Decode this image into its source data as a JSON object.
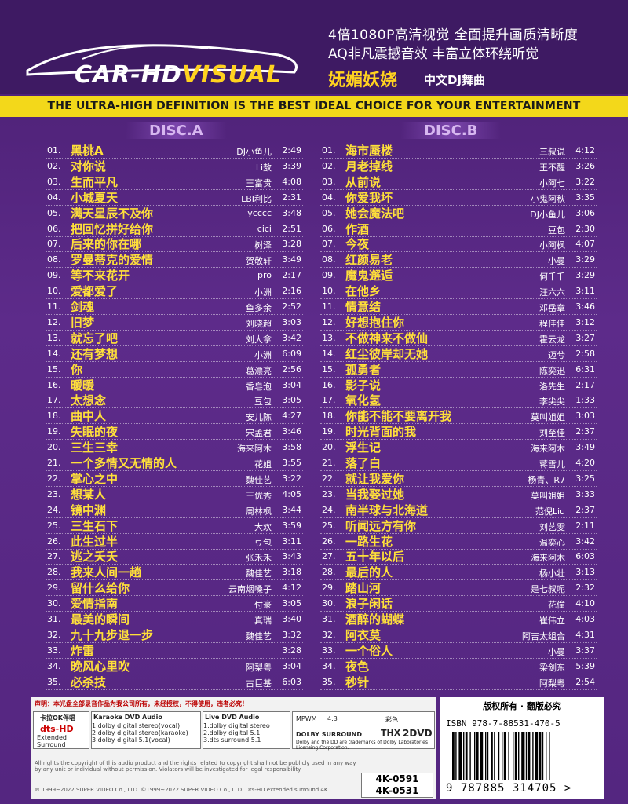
{
  "header": {
    "logo_left": "CAR-HD",
    "logo_right": "VISUAL",
    "features": [
      "4倍1080P高清视觉 全面提升画质清晰度",
      "AQ非凡震撼音效 丰富立体环绕听觉"
    ],
    "title": "妩媚妖娆",
    "subtitle": "中文DJ舞曲"
  },
  "banner": "THE ULTRA-HIGH DEFINITION IS THE BEST IDEAL CHOICE FOR YOUR ENTERTAINMENT",
  "discs": [
    {
      "label": "DISC.A",
      "tracks": [
        {
          "no": "01.",
          "title": "黑桃A",
          "artist": "DJ小鱼儿",
          "time": "2:49"
        },
        {
          "no": "02.",
          "title": "对你说",
          "artist": "Li敖",
          "time": "3:39"
        },
        {
          "no": "03.",
          "title": "生而平凡",
          "artist": "王富贵",
          "time": "4:08"
        },
        {
          "no": "04.",
          "title": "小城夏天",
          "artist": "LBI利比",
          "time": "2:31"
        },
        {
          "no": "05.",
          "title": "满天星辰不及你",
          "artist": "ycccc",
          "time": "3:48"
        },
        {
          "no": "06.",
          "title": "把回忆拼好给你",
          "artist": "cici",
          "time": "2:51"
        },
        {
          "no": "07.",
          "title": "后来的你在哪",
          "artist": "树泽",
          "time": "3:28"
        },
        {
          "no": "08.",
          "title": "罗曼蒂克的爱情",
          "artist": "贺敬轩",
          "time": "3:49"
        },
        {
          "no": "09.",
          "title": "等不来花开",
          "artist": "pro",
          "time": "2:17"
        },
        {
          "no": "10.",
          "title": "爱都爱了",
          "artist": "小洲",
          "time": "2:16"
        },
        {
          "no": "11.",
          "title": "剑魂",
          "artist": "鱼多余",
          "time": "2:52"
        },
        {
          "no": "12.",
          "title": "旧梦",
          "artist": "刘晓超",
          "time": "3:03"
        },
        {
          "no": "13.",
          "title": "就忘了吧",
          "artist": "刘大拿",
          "time": "3:42"
        },
        {
          "no": "14.",
          "title": "还有梦想",
          "artist": "小洲",
          "time": "6:09"
        },
        {
          "no": "15.",
          "title": "你",
          "artist": "葛漂亮",
          "time": "2:56"
        },
        {
          "no": "16.",
          "title": "暖暖",
          "artist": "香皂泡",
          "time": "3:04"
        },
        {
          "no": "17.",
          "title": "太想念",
          "artist": "豆包",
          "time": "3:05"
        },
        {
          "no": "18.",
          "title": "曲中人",
          "artist": "安儿陈",
          "time": "4:27"
        },
        {
          "no": "19.",
          "title": "失眠的夜",
          "artist": "宋孟君",
          "time": "3:46"
        },
        {
          "no": "20.",
          "title": "三生三幸",
          "artist": "海来阿木",
          "time": "3:58"
        },
        {
          "no": "21.",
          "title": "一个多情又无情的人",
          "artist": "花姐",
          "time": "3:55"
        },
        {
          "no": "22.",
          "title": "掌心之中",
          "artist": "魏佳艺",
          "time": "3:22"
        },
        {
          "no": "23.",
          "title": "想某人",
          "artist": "王优秀",
          "time": "4:05"
        },
        {
          "no": "24.",
          "title": "镜中渊",
          "artist": "周林枫",
          "time": "3:44"
        },
        {
          "no": "25.",
          "title": "三生石下",
          "artist": "大欢",
          "time": "3:59"
        },
        {
          "no": "26.",
          "title": "此生过半",
          "artist": "豆包",
          "time": "3:11"
        },
        {
          "no": "27.",
          "title": "逃之夭夭",
          "artist": "张禾禾",
          "time": "3:43"
        },
        {
          "no": "28.",
          "title": "我来人间一趟",
          "artist": "魏佳艺",
          "time": "3:18"
        },
        {
          "no": "29.",
          "title": "留什么给你",
          "artist": "云南烟嗓子",
          "time": "4:12"
        },
        {
          "no": "30.",
          "title": "爱情指南",
          "artist": "付豪",
          "time": "3:05"
        },
        {
          "no": "31.",
          "title": "最美的瞬间",
          "artist": "真瑞",
          "time": "3:40"
        },
        {
          "no": "32.",
          "title": "九十九步退一步",
          "artist": "魏佳艺",
          "time": "3:32"
        },
        {
          "no": "33.",
          "title": "炸雷",
          "time": "3:28"
        },
        {
          "no": "34.",
          "title": "晚风心里吹",
          "artist": "阿梨粤",
          "time": "3:04"
        },
        {
          "no": "35.",
          "title": "必杀技",
          "artist": "古巨基",
          "time": "6:03"
        }
      ]
    },
    {
      "label": "DISC.B",
      "tracks": [
        {
          "no": "01.",
          "title": "海市蜃楼",
          "artist": "三叔说",
          "time": "4:12"
        },
        {
          "no": "02.",
          "title": "月老掉线",
          "artist": "王不醒",
          "time": "3:26"
        },
        {
          "no": "03.",
          "title": "从前说",
          "artist": "小阿七",
          "time": "3:22"
        },
        {
          "no": "04.",
          "title": "你爱我坏",
          "artist": "小鬼阿秋",
          "time": "3:35"
        },
        {
          "no": "05.",
          "title": "她会魔法吧",
          "artist": "DJ小鱼儿",
          "time": "3:06"
        },
        {
          "no": "06.",
          "title": "作酒",
          "artist": "豆包",
          "time": "2:30"
        },
        {
          "no": "07.",
          "title": "今夜",
          "artist": "小阿枫",
          "time": "4:07"
        },
        {
          "no": "08.",
          "title": "红颜易老",
          "artist": "小曼",
          "time": "3:29"
        },
        {
          "no": "09.",
          "title": "魔鬼邂逅",
          "artist": "何千千",
          "time": "3:29"
        },
        {
          "no": "10.",
          "title": "在他乡",
          "artist": "汪六六",
          "time": "3:11"
        },
        {
          "no": "11.",
          "title": "情意结",
          "artist": "邓岳章",
          "time": "3:46"
        },
        {
          "no": "12.",
          "title": "好想抱住你",
          "artist": "程佳佳",
          "time": "3:12"
        },
        {
          "no": "13.",
          "title": "不做神来不做仙",
          "artist": "霍云龙",
          "time": "3:27"
        },
        {
          "no": "14.",
          "title": "红尘彼岸却无她",
          "artist": "迈兮",
          "time": "2:58"
        },
        {
          "no": "15.",
          "title": "孤勇者",
          "artist": "陈奕迅",
          "time": "6:31"
        },
        {
          "no": "16.",
          "title": "影子说",
          "artist": "洛先生",
          "time": "2:17"
        },
        {
          "no": "17.",
          "title": "氧化氢",
          "artist": "李尖尖",
          "time": "1:33"
        },
        {
          "no": "18.",
          "title": "你能不能不要离开我",
          "artist": "莫叫姐姐",
          "time": "3:03"
        },
        {
          "no": "19.",
          "title": "时光背面的我",
          "artist": "刘至佳",
          "time": "2:37"
        },
        {
          "no": "20.",
          "title": "浮生记",
          "artist": "海来阿木",
          "time": "3:49"
        },
        {
          "no": "21.",
          "title": "落了白",
          "artist": "蒋雪儿",
          "time": "4:20"
        },
        {
          "no": "22.",
          "title": "就让我爱你",
          "artist": "杨青、R7",
          "time": "3:25"
        },
        {
          "no": "23.",
          "title": "当我娶过她",
          "artist": "莫叫姐姐",
          "time": "3:33"
        },
        {
          "no": "24.",
          "title": "南半球与北海道",
          "artist": "范倪Liu",
          "time": "2:37"
        },
        {
          "no": "25.",
          "title": "听闻远方有你",
          "artist": "刘艺雯",
          "time": "2:11"
        },
        {
          "no": "26.",
          "title": "一路生花",
          "artist": "温奕心",
          "time": "3:42"
        },
        {
          "no": "27.",
          "title": "五十年以后",
          "artist": "海来阿木",
          "time": "6:03"
        },
        {
          "no": "28.",
          "title": "最后的人",
          "artist": "杨小壮",
          "time": "3:13"
        },
        {
          "no": "29.",
          "title": "踏山河",
          "artist": "是七叔呢",
          "time": "2:32"
        },
        {
          "no": "30.",
          "title": "浪子闲话",
          "artist": "花僮",
          "time": "4:10"
        },
        {
          "no": "31.",
          "title": "酒醉的蝴蝶",
          "artist": "崔伟立",
          "time": "4:03"
        },
        {
          "no": "32.",
          "title": "阿衣莫",
          "artist": "阿吉太组合",
          "time": "4:31"
        },
        {
          "no": "33.",
          "title": "一个俗人",
          "artist": "小曼",
          "time": "3:37"
        },
        {
          "no": "34.",
          "title": "夜色",
          "artist": "梁剑东",
          "time": "5:39"
        },
        {
          "no": "35.",
          "title": "秒针",
          "artist": "阿梨粤",
          "time": "2:54"
        }
      ]
    }
  ],
  "footer": {
    "statement": "声明：本光盘全部录音作品为我公司所有，未经授权，不得使用，违者必究！",
    "karaoke_label": "卡拉OK伴唱",
    "dts": "dts-HD",
    "dts_sub": "Extended Surround",
    "karaoke_audio": {
      "title": "Karaoke DVD Audio",
      "items": [
        "1.dolby digital stereo(vocal)",
        "2.dolby digital stereo(karaoke)",
        "3.dolby digital 5.1(vocal)"
      ]
    },
    "live_audio": {
      "title": "Live DVD Audio",
      "items": [
        "1.dolby digital stereo",
        "2.dolby digital 5.1",
        "3.dts surround 5.1"
      ]
    },
    "mpwm": "MPWM",
    "ratio": "4:3",
    "color": "彩色",
    "dolby": "DOLBY SURROUND",
    "thx": "THX",
    "discs": "2DVD",
    "dolby_note": "Dolby and the DD are trademarks of Dolby Laboratories Licensing Corporation.",
    "rights": "All rights the copyright of this audio product and the rights related to copyright shall not be publicly used in any way by any unit or individual without permission. Violators will be investigated for legal responsibility.",
    "copyright": "℗ 1999~2022 SUPER VIDEO Co., LTD. ©1999~2022 SUPER VIDEO Co., LTD. Dts-HD extended surround 4K",
    "catalog": [
      "4K-0591",
      "4K-0531"
    ],
    "notice": "版权所有 · 翻版必究",
    "isbn": "ISBN 978-7-88531-470-5",
    "barcode_digits": "9 787885 314705 >"
  }
}
